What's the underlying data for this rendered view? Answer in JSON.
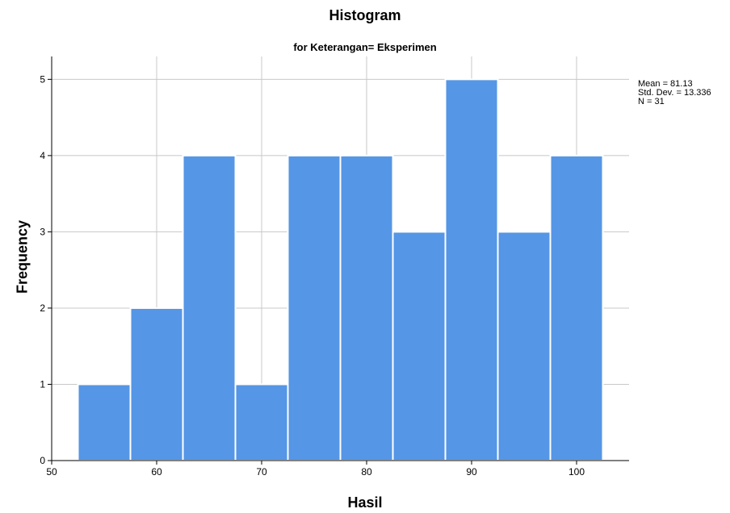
{
  "chart_data": {
    "type": "bar",
    "title": "Histogram",
    "subtitle": "for Keterangan= Eksperimen",
    "xlabel": "Hasil",
    "ylabel": "Frequency",
    "bins": [
      {
        "start": 52.5,
        "end": 57.5,
        "count": 1
      },
      {
        "start": 57.5,
        "end": 62.5,
        "count": 2
      },
      {
        "start": 62.5,
        "end": 67.5,
        "count": 4
      },
      {
        "start": 67.5,
        "end": 72.5,
        "count": 1
      },
      {
        "start": 72.5,
        "end": 77.5,
        "count": 4
      },
      {
        "start": 77.5,
        "end": 82.5,
        "count": 4
      },
      {
        "start": 82.5,
        "end": 87.5,
        "count": 3
      },
      {
        "start": 87.5,
        "end": 92.5,
        "count": 5
      },
      {
        "start": 92.5,
        "end": 97.5,
        "count": 3
      },
      {
        "start": 97.5,
        "end": 102.5,
        "count": 4
      }
    ],
    "xlim": [
      50,
      105
    ],
    "ylim": [
      0,
      5.3
    ],
    "xticks": [
      50,
      60,
      70,
      80,
      90,
      100
    ],
    "yticks": [
      0,
      1,
      2,
      3,
      4,
      5
    ],
    "grid": true,
    "bar_color": "#5596E6",
    "stats": [
      "Mean = 81.13",
      "Std. Dev. = 13.336",
      "N = 31"
    ]
  }
}
